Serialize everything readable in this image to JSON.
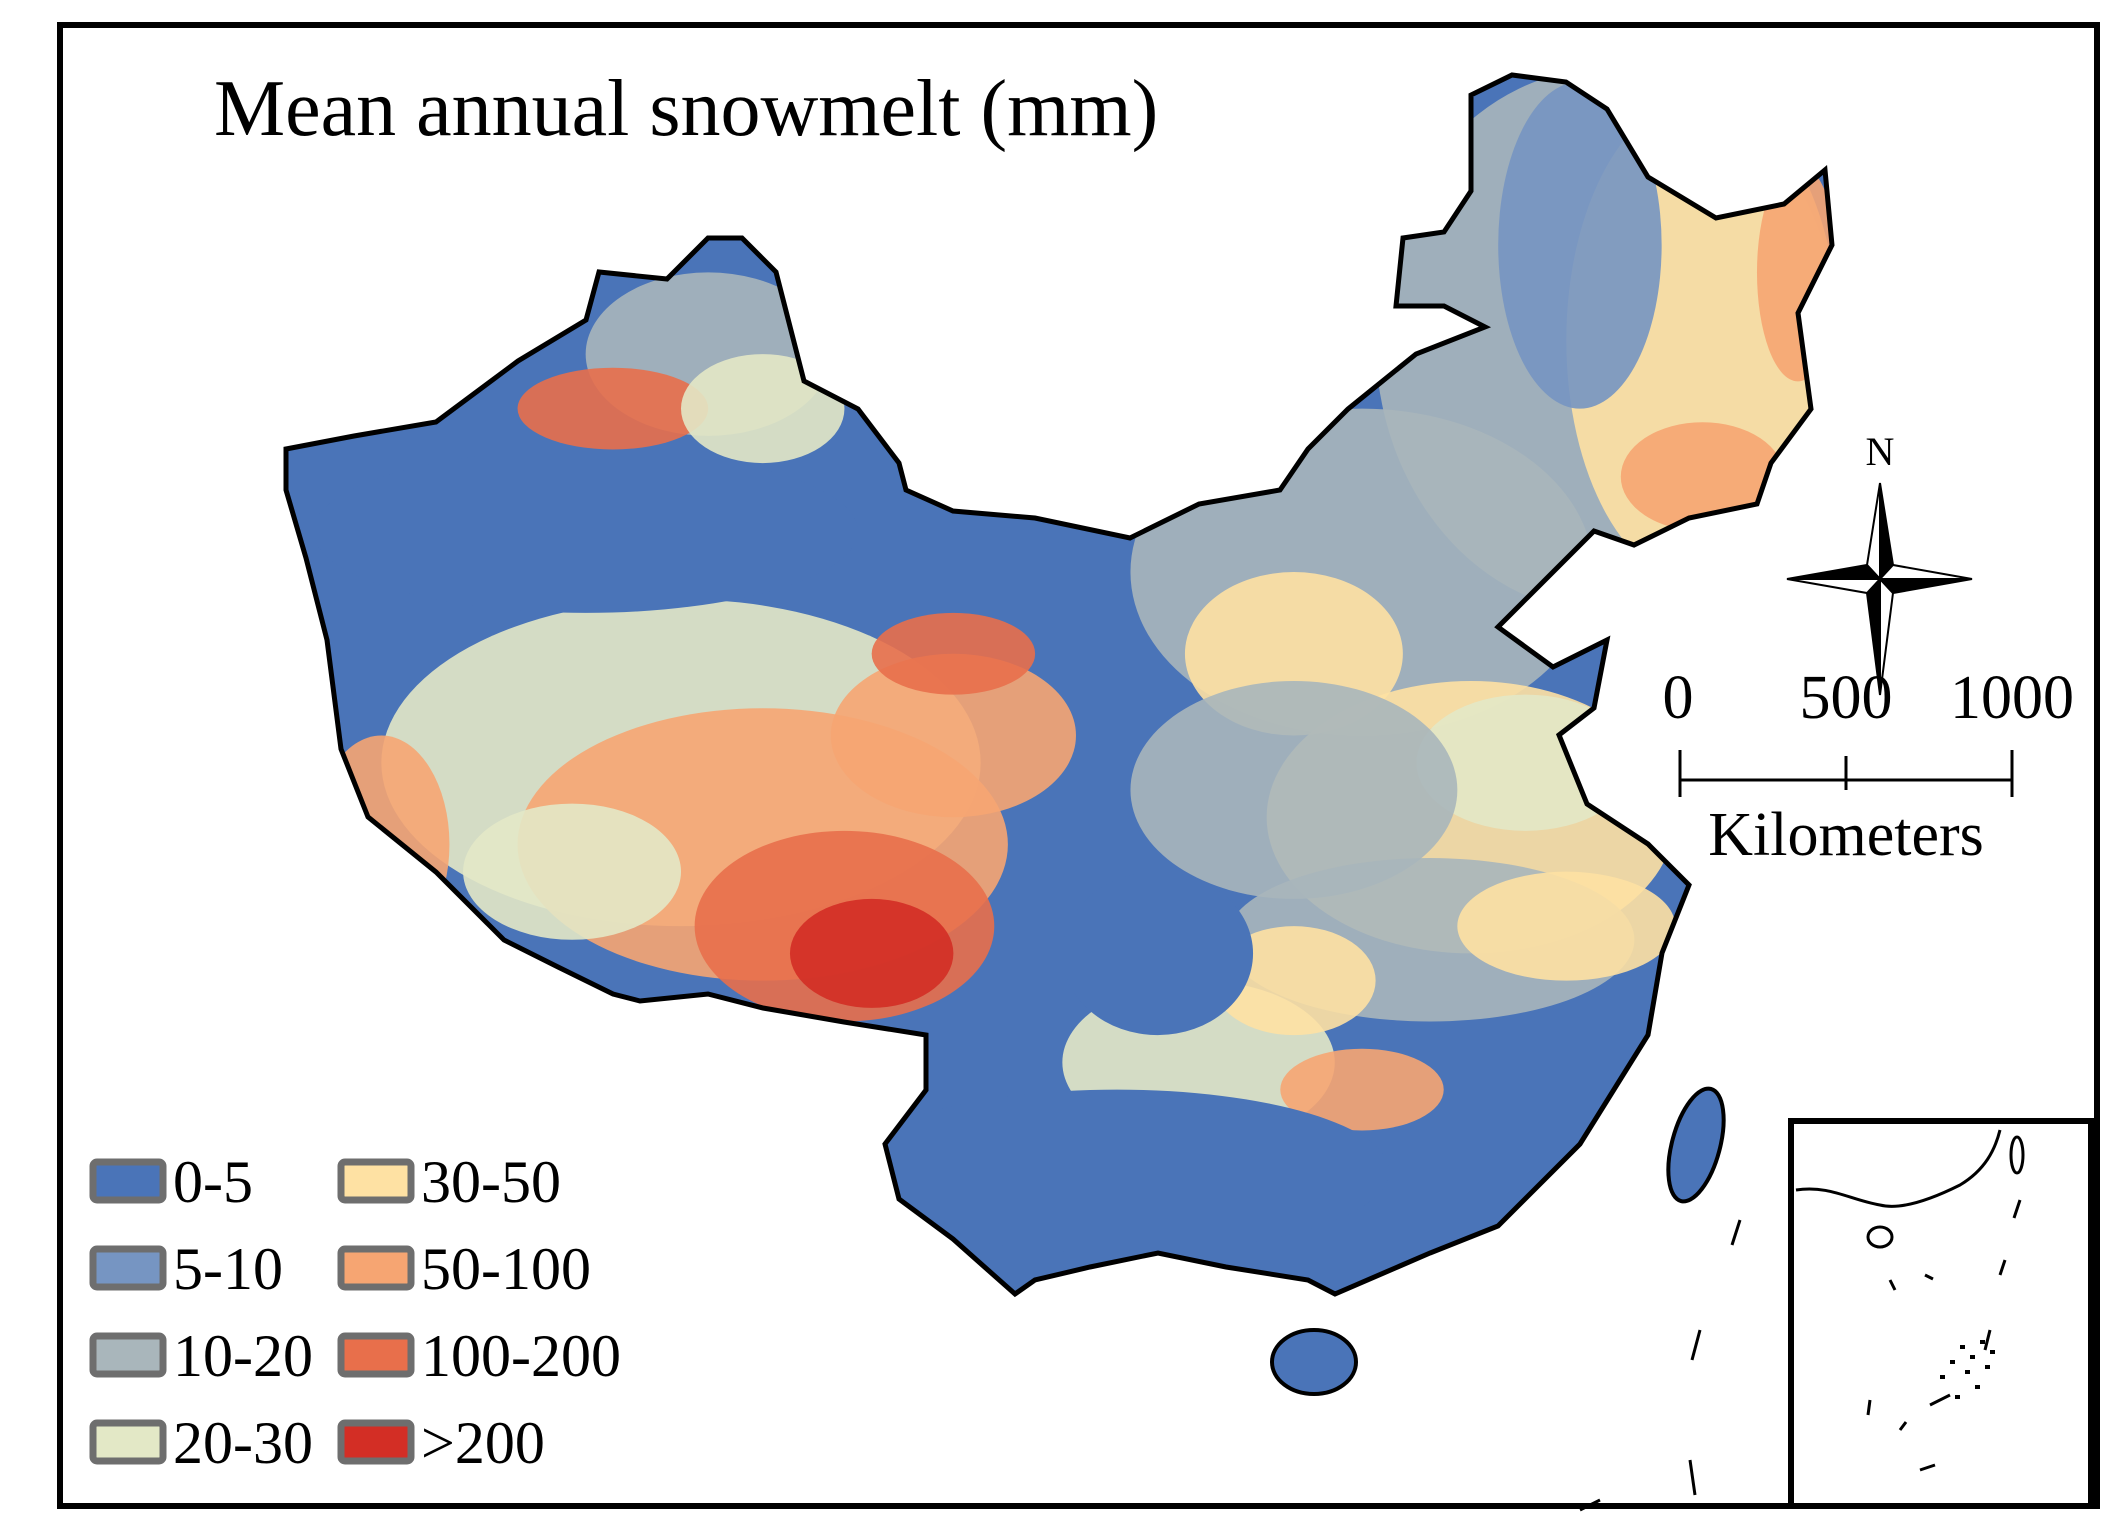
{
  "title": "Mean annual snowmelt (mm)",
  "legend": {
    "items": [
      {
        "label": "0-5",
        "color": "#4a74b8"
      },
      {
        "label": "5-10",
        "color": "#7695c2"
      },
      {
        "label": "10-20",
        "color": "#a9b6bb"
      },
      {
        "label": "20-30",
        "color": "#e3e8c6"
      },
      {
        "label": "30-50",
        "color": "#fee1a3"
      },
      {
        "label": "50-100",
        "color": "#f6a572"
      },
      {
        "label": "100-200",
        "color": "#e86f4b"
      },
      {
        "label": ">200",
        "color": "#d32e25"
      }
    ]
  },
  "north_arrow": {
    "label": "N",
    "icon": "compass-rose-icon"
  },
  "scale_bar": {
    "ticks": [
      "0",
      "500",
      "1000"
    ],
    "unit": "Kilometers"
  },
  "inset": {
    "content": "South China Sea islands inset"
  }
}
